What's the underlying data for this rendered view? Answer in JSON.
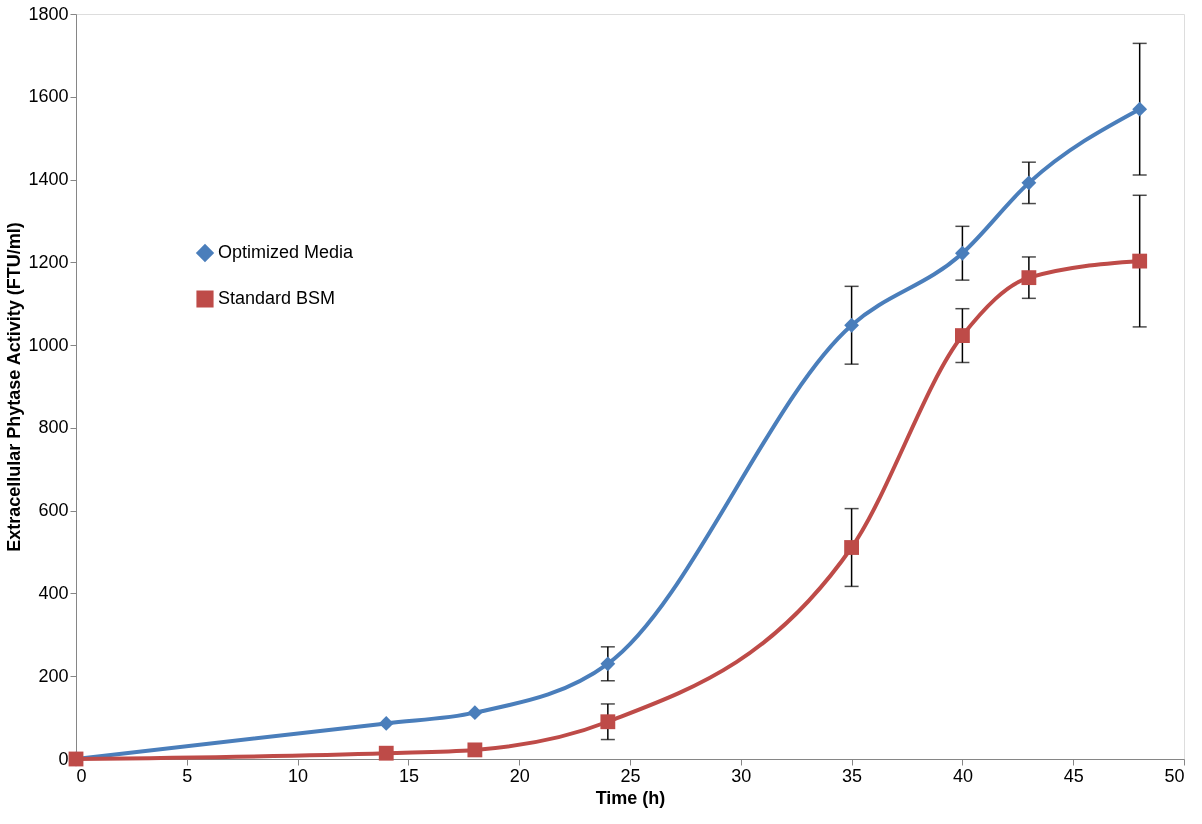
{
  "chart_data": {
    "type": "line",
    "xlabel": "Time (h)",
    "ylabel": "Extracellular Phytase Activity (FTU/ml)",
    "x": [
      0,
      14,
      18,
      24,
      35,
      40,
      43,
      48
    ],
    "series": [
      {
        "name": "Optimized Media",
        "color": "#4a7ebb",
        "marker": "diamond",
        "values": [
          0,
          86,
          112,
          230,
          1048,
          1222,
          1392,
          1570
        ],
        "errors": [
          null,
          null,
          null,
          41,
          94,
          65,
          50,
          159
        ]
      },
      {
        "name": "Standard BSM",
        "color": "#be4b48",
        "marker": "square",
        "values": [
          0,
          14,
          22,
          90,
          511,
          1023,
          1163,
          1203
        ],
        "errors": [
          null,
          null,
          null,
          43,
          94,
          65,
          50,
          159
        ]
      }
    ],
    "xlim": [
      0,
      50
    ],
    "xticks": [
      0,
      5,
      10,
      15,
      20,
      25,
      30,
      35,
      40,
      45,
      50
    ],
    "ylim": [
      0,
      1800
    ],
    "yticks": [
      0,
      200,
      400,
      600,
      800,
      1000,
      1200,
      1400,
      1600,
      1800
    ],
    "grid": false,
    "legend": "left",
    "line_style": "solid"
  }
}
